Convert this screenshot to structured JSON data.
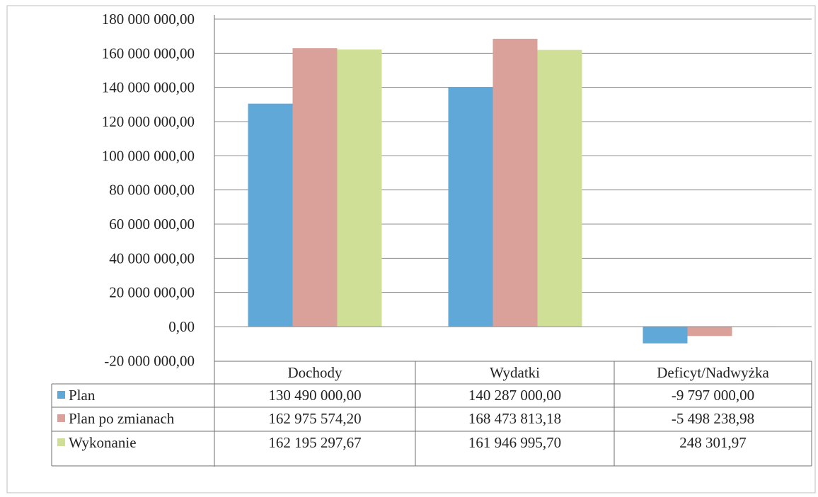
{
  "chart_data": {
    "type": "bar",
    "categories": [
      "Dochody",
      "Wydatki",
      "Deficyt/Nadwyżka"
    ],
    "series": [
      {
        "name": "Plan",
        "values": [
          130490000.0,
          140287000.0,
          -9797000.0
        ],
        "display": [
          "130 490 000,00",
          "140 287 000,00",
          "-9 797 000,00"
        ],
        "color": "#5fa8d8"
      },
      {
        "name": "Plan po zmianach",
        "values": [
          162975574.2,
          168473813.18,
          -5498238.98
        ],
        "display": [
          "162 975 574,20",
          "168 473 813,18",
          "-5 498 238,98"
        ],
        "color": "#d9a19a"
      },
      {
        "name": "Wykonanie",
        "values": [
          162195297.67,
          161946995.7,
          248301.97
        ],
        "display": [
          "162 195 297,67",
          "161 946 995,70",
          "248 301,97"
        ],
        "color": "#cfe096"
      }
    ],
    "ylim": [
      -20000000,
      180000000
    ],
    "yticks": [
      -20000000,
      0,
      20000000,
      40000000,
      60000000,
      80000000,
      100000000,
      120000000,
      140000000,
      160000000,
      180000000
    ],
    "ytick_labels": [
      "-20 000 000,00",
      "0,00",
      "20 000 000,00",
      "40 000 000,00",
      "60 000 000,00",
      "80 000 000,00",
      "100 000 000,00",
      "120 000 000,00",
      "140 000 000,00",
      "160 000 000,00",
      "180 000 000,00"
    ],
    "grid": true,
    "legend": "data-table",
    "title": "",
    "xlabel": "",
    "ylabel": ""
  }
}
